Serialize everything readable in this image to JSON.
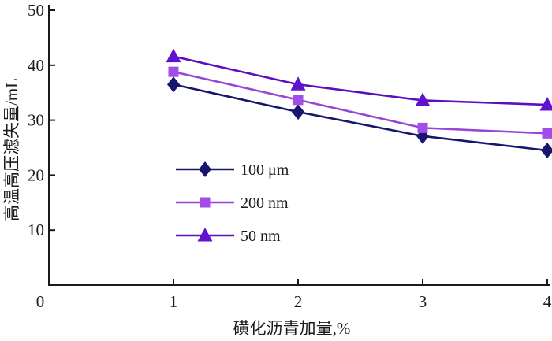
{
  "chart_data": {
    "type": "line",
    "title": "",
    "xlabel": "磺化沥青加量,%",
    "ylabel": "高温高压滤失量/mL",
    "x": [
      1,
      2,
      3,
      4
    ],
    "xlim": [
      0,
      4.02
    ],
    "ylim": [
      0,
      50
    ],
    "x_ticks": [
      1,
      2,
      3,
      4
    ],
    "x_tick_labels": [
      "1",
      "2",
      "3",
      "4"
    ],
    "y_ticks": [
      10,
      20,
      30,
      40,
      50
    ],
    "y_tick_labels": [
      "10",
      "20",
      "30",
      "40",
      "50"
    ],
    "origin_label": "0",
    "grid": false,
    "axis_color": "#1a1a1a",
    "legend": {
      "position": "inside-center-left",
      "entries": [
        "100 μm",
        "200 nm",
        "50 nm"
      ]
    },
    "series": [
      {
        "name": "100 μm",
        "marker": "diamond",
        "marker_color": "#16166e",
        "line_color": "#16166e",
        "values": [
          36.5,
          31.5,
          27.1,
          24.5
        ]
      },
      {
        "name": "200 nm",
        "marker": "square",
        "marker_color": "#a24de8",
        "line_color": "#9747d6",
        "values": [
          38.8,
          33.7,
          28.6,
          27.6
        ]
      },
      {
        "name": "50 nm",
        "marker": "triangle",
        "marker_color": "#6212cf",
        "line_color": "#5a10bd",
        "values": [
          41.6,
          36.5,
          33.6,
          32.8
        ]
      }
    ]
  }
}
